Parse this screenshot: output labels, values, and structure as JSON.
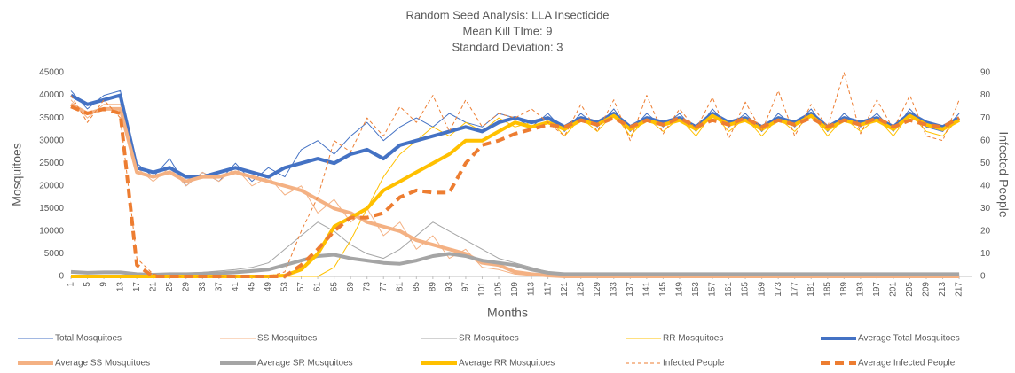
{
  "chart_data": {
    "type": "line",
    "title": [
      "Random Seed Analysis: LLA Insecticide",
      "Mean Kill TIme: 9",
      "Standard Deviation: 3"
    ],
    "x_label": "Months",
    "y_label": "Mosquitoes",
    "y2_label": "Infected People",
    "x": [
      1,
      5,
      9,
      13,
      17,
      21,
      25,
      29,
      33,
      37,
      41,
      45,
      49,
      53,
      57,
      61,
      65,
      69,
      73,
      77,
      81,
      85,
      89,
      93,
      97,
      101,
      105,
      109,
      113,
      117,
      121,
      125,
      129,
      133,
      137,
      141,
      145,
      149,
      153,
      157,
      161,
      165,
      169,
      173,
      177,
      181,
      185,
      189,
      193,
      197,
      201,
      205,
      209,
      213,
      217
    ],
    "xlim": [
      1,
      220
    ],
    "xticks": [
      1,
      5,
      9,
      13,
      17,
      21,
      25,
      29,
      33,
      37,
      41,
      45,
      49,
      53,
      57,
      61,
      65,
      69,
      73,
      77,
      81,
      85,
      89,
      93,
      97,
      101,
      105,
      109,
      113,
      117,
      121,
      125,
      129,
      133,
      137,
      141,
      145,
      149,
      153,
      157,
      161,
      165,
      169,
      173,
      177,
      181,
      185,
      189,
      193,
      197,
      201,
      205,
      209,
      213,
      217
    ],
    "ylim": [
      0,
      45000
    ],
    "yticks": [
      0,
      5000,
      10000,
      15000,
      20000,
      25000,
      30000,
      35000,
      40000,
      45000
    ],
    "y2lim": [
      0,
      90
    ],
    "y2ticks": [
      0,
      10,
      20,
      30,
      40,
      50,
      60,
      70,
      80,
      90
    ],
    "grid": false,
    "legend": "bottom",
    "series": [
      {
        "name": "Total Mosquitoes",
        "color": "#4472c4",
        "width": 1,
        "dashed": false,
        "values": [
          41000,
          37000,
          40000,
          41000,
          25000,
          22000,
          26000,
          20000,
          23000,
          21000,
          25000,
          21000,
          24000,
          22000,
          28000,
          30000,
          27000,
          31000,
          34000,
          30000,
          33000,
          35000,
          33000,
          36000,
          34000,
          33000,
          36000,
          35000,
          33000,
          36000,
          32000,
          36000,
          33000,
          37000,
          32000,
          36000,
          33000,
          36000,
          32000,
          37000,
          33000,
          36000,
          32000,
          36000,
          33000,
          37000,
          32000,
          36000,
          33000,
          36000,
          32000,
          37000,
          33000,
          32000,
          36000
        ]
      },
      {
        "name": "SS Mosquitoes",
        "color": "#f4b183",
        "width": 1,
        "dashed": false,
        "values": [
          39000,
          35000,
          38000,
          38000,
          24000,
          21000,
          24000,
          20000,
          23000,
          21000,
          24000,
          20000,
          22000,
          18000,
          20000,
          14000,
          17000,
          12000,
          15000,
          9000,
          12000,
          6000,
          9000,
          4000,
          6000,
          2000,
          1500,
          500,
          200,
          0,
          0,
          0,
          0,
          0,
          0,
          0,
          0,
          0,
          0,
          0,
          0,
          0,
          0,
          0,
          0,
          0,
          0,
          0,
          0,
          0,
          0,
          0,
          0,
          0,
          0
        ]
      },
      {
        "name": "SR Mosquitoes",
        "color": "#a5a5a5",
        "width": 1,
        "dashed": false,
        "values": [
          1000,
          900,
          1000,
          800,
          600,
          500,
          600,
          700,
          900,
          1200,
          1500,
          2000,
          3000,
          6000,
          9000,
          12000,
          10000,
          7000,
          5000,
          4000,
          6000,
          9000,
          12000,
          10000,
          8000,
          6000,
          4000,
          3000,
          2000,
          1000,
          400,
          400,
          400,
          400,
          400,
          400,
          400,
          400,
          400,
          400,
          400,
          400,
          400,
          400,
          400,
          400,
          400,
          400,
          400,
          400,
          400,
          400,
          400,
          400,
          400
        ]
      },
      {
        "name": "RR Mosquitoes",
        "color": "#ffc000",
        "width": 1,
        "dashed": false,
        "values": [
          0,
          0,
          0,
          0,
          0,
          0,
          0,
          0,
          0,
          0,
          0,
          0,
          0,
          0,
          0,
          0,
          2000,
          8000,
          15000,
          22000,
          27000,
          30000,
          33000,
          31000,
          34000,
          32000,
          35000,
          33000,
          34000,
          35000,
          31000,
          35000,
          32000,
          36000,
          31000,
          35000,
          32000,
          35000,
          31000,
          36000,
          32000,
          35000,
          31000,
          35000,
          32000,
          36000,
          31000,
          35000,
          32000,
          35000,
          31000,
          36000,
          32000,
          31000,
          35000
        ]
      },
      {
        "name": "Average Total Mosquitoes",
        "color": "#4472c4",
        "width": 4,
        "dashed": false,
        "values": [
          40000,
          38000,
          39000,
          40000,
          24000,
          23000,
          24000,
          22000,
          22000,
          23000,
          24000,
          23000,
          22000,
          24000,
          25000,
          26000,
          25000,
          27000,
          28000,
          26000,
          29000,
          30000,
          31000,
          32000,
          33000,
          32000,
          34000,
          35000,
          34000,
          35000,
          33000,
          35000,
          34000,
          36000,
          33000,
          35000,
          34000,
          35000,
          33000,
          36000,
          34000,
          35000,
          33000,
          35000,
          34000,
          36000,
          33000,
          35000,
          34000,
          35000,
          33000,
          36000,
          34000,
          33000,
          35000
        ]
      },
      {
        "name": "Average SS Mosquitoes",
        "color": "#f4b183",
        "width": 4,
        "dashed": false,
        "values": [
          38000,
          36000,
          37000,
          37000,
          23000,
          22000,
          23000,
          21000,
          22000,
          22000,
          23000,
          22000,
          21000,
          20000,
          19000,
          17000,
          15000,
          14000,
          12000,
          11000,
          10000,
          8000,
          7000,
          6000,
          5000,
          3000,
          2500,
          1000,
          500,
          200,
          0,
          0,
          0,
          0,
          0,
          0,
          0,
          0,
          0,
          0,
          0,
          0,
          0,
          0,
          0,
          0,
          0,
          0,
          0,
          0,
          0,
          0,
          0,
          0,
          0
        ]
      },
      {
        "name": "Average SR Mosquitoes",
        "color": "#a5a5a5",
        "width": 4,
        "dashed": false,
        "values": [
          1000,
          800,
          900,
          900,
          500,
          400,
          500,
          500,
          600,
          700,
          900,
          1200,
          1500,
          2500,
          3500,
          4500,
          4800,
          4000,
          3500,
          3000,
          2800,
          3500,
          4500,
          5000,
          4500,
          3500,
          3000,
          2500,
          1500,
          800,
          500,
          500,
          500,
          500,
          500,
          500,
          500,
          500,
          500,
          500,
          500,
          500,
          500,
          500,
          500,
          500,
          500,
          500,
          500,
          500,
          500,
          500,
          500,
          500,
          500
        ]
      },
      {
        "name": "Average RR Mosquitoes",
        "color": "#ffc000",
        "width": 4,
        "dashed": false,
        "values": [
          0,
          0,
          0,
          0,
          0,
          0,
          0,
          0,
          0,
          0,
          0,
          0,
          0,
          200,
          1500,
          5000,
          11000,
          13000,
          15000,
          19000,
          21000,
          23000,
          25000,
          27000,
          30000,
          30000,
          32000,
          34000,
          33000,
          34000,
          32500,
          34500,
          33500,
          35500,
          32500,
          34500,
          33500,
          34500,
          32500,
          35500,
          33500,
          34500,
          32500,
          34500,
          33500,
          35500,
          32500,
          34500,
          33500,
          34500,
          32500,
          35500,
          33500,
          32500,
          34500
        ]
      },
      {
        "name": "Infected People",
        "color": "#ed7d31",
        "width": 1,
        "dashed": true,
        "axis": "y2",
        "values": [
          80,
          68,
          78,
          70,
          8,
          1,
          0,
          0,
          0,
          0,
          0,
          0,
          0,
          2,
          20,
          35,
          60,
          55,
          70,
          62,
          75,
          68,
          80,
          64,
          78,
          66,
          72,
          70,
          74,
          68,
          62,
          76,
          64,
          78,
          60,
          80,
          63,
          74,
          65,
          79,
          61,
          77,
          64,
          82,
          62,
          76,
          66,
          90,
          63,
          78,
          65,
          80,
          62,
          60,
          78
        ]
      },
      {
        "name": "Average Infected People",
        "color": "#ed7d31",
        "width": 4,
        "dashed": true,
        "axis": "y2",
        "values": [
          75,
          72,
          74,
          72,
          5,
          0,
          0,
          0,
          0,
          0,
          0,
          0,
          0,
          0,
          5,
          12,
          20,
          26,
          26,
          28,
          35,
          38,
          37,
          37,
          50,
          58,
          60,
          63,
          65,
          67,
          66,
          69,
          67,
          70,
          66,
          69,
          67,
          70,
          66,
          69,
          67,
          70,
          66,
          69,
          67,
          70,
          66,
          69,
          67,
          70,
          66,
          69,
          67,
          66,
          70
        ]
      }
    ]
  }
}
